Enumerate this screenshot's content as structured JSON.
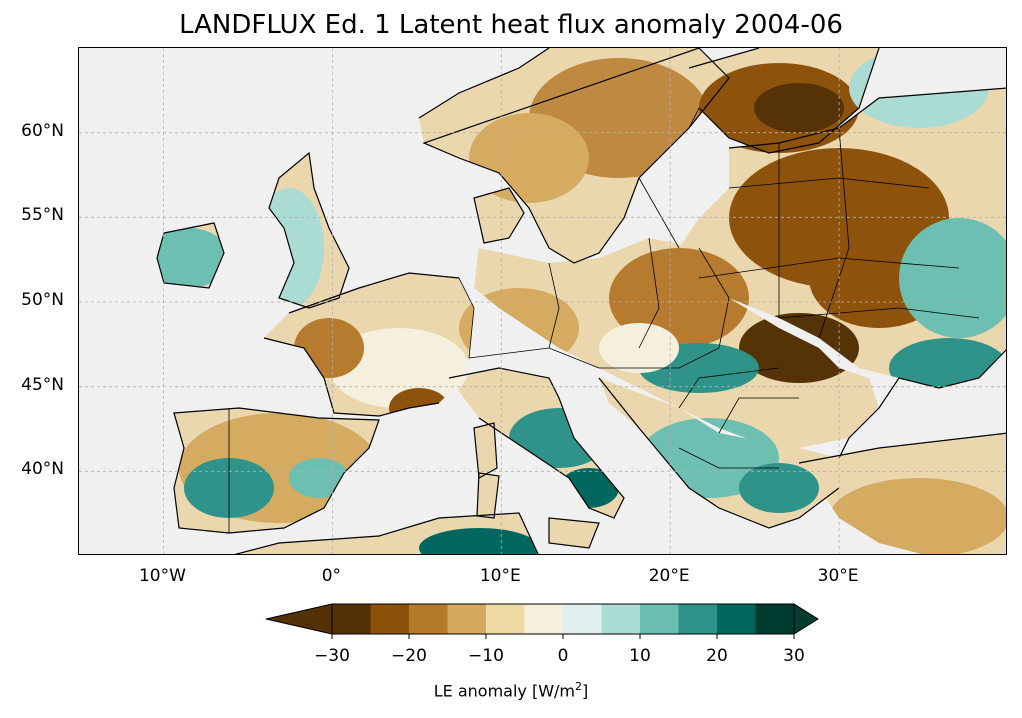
{
  "title": "LANDFLUX Ed. 1 Latent heat flux anomaly 2004-06",
  "map": {
    "lon_range": [
      -15,
      40
    ],
    "lat_range": [
      35,
      65
    ],
    "lat_ticks": [
      {
        "value": 60,
        "label": "60°N"
      },
      {
        "value": 55,
        "label": "55°N"
      },
      {
        "value": 50,
        "label": "50°N"
      },
      {
        "value": 45,
        "label": "45°N"
      },
      {
        "value": 40,
        "label": "40°N"
      }
    ],
    "lon_ticks": [
      {
        "value": -10,
        "label": "10°W"
      },
      {
        "value": 0,
        "label": "0°"
      },
      {
        "value": 10,
        "label": "10°E"
      },
      {
        "value": 20,
        "label": "20°E"
      },
      {
        "value": 30,
        "label": "30°E"
      }
    ],
    "ocean_color": "#f0f0f0",
    "gridline_color": "#b0b0b0"
  },
  "colorbar": {
    "label_main": "LE anomaly [W/m",
    "label_sup": "2",
    "label_end": "]",
    "levels": [
      -30,
      -25,
      -20,
      -15,
      -10,
      -5,
      0,
      5,
      10,
      15,
      20,
      25,
      30
    ],
    "colors": [
      "#543005",
      "#8c510a",
      "#b67a2c",
      "#d5aa60",
      "#edd9a4",
      "#f5efdd",
      "#dfefee",
      "#aadcd4",
      "#6bbfb1",
      "#2d9288",
      "#01665e",
      "#003c30"
    ],
    "extend": "both",
    "ticks": [
      {
        "value": -30,
        "label": "−30"
      },
      {
        "value": -20,
        "label": "−20"
      },
      {
        "value": -10,
        "label": "−10"
      },
      {
        "value": 0,
        "label": "0"
      },
      {
        "value": 10,
        "label": "10"
      },
      {
        "value": 20,
        "label": "20"
      },
      {
        "value": 30,
        "label": "30"
      }
    ]
  }
}
